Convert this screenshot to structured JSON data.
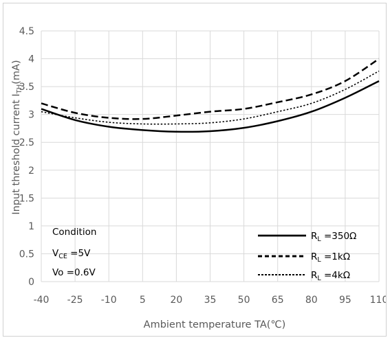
{
  "chart_data": {
    "type": "line",
    "xlabel": "Ambient temperature TA(℃)",
    "ylabel_parts": [
      "Input threshold current I",
      "TH",
      "(mA)"
    ],
    "x_ticks": [
      -40,
      -25,
      -10,
      5,
      20,
      35,
      50,
      65,
      80,
      95,
      110
    ],
    "y_ticks": [
      "0",
      "0.5",
      "1",
      "1.5",
      "2",
      "2.5",
      "3",
      "3.5",
      "4",
      "4.5"
    ],
    "xlim": [
      -40,
      110
    ],
    "ylim": [
      0,
      4.5
    ],
    "grid": true,
    "condition": {
      "title": "Condition",
      "vce_prefix": "V",
      "vce_sub": "CE",
      "vce_value": " =5V",
      "vo": "Vo =0.6V"
    },
    "series": [
      {
        "name": "Rₗ =350Ω",
        "label_main": "R",
        "label_sub": "L",
        "label_value": " =350Ω",
        "style": "solid",
        "x": [
          -40,
          -25,
          -10,
          5,
          20,
          35,
          50,
          65,
          80,
          95,
          110
        ],
        "y": [
          3.1,
          2.9,
          2.78,
          2.72,
          2.69,
          2.7,
          2.76,
          2.88,
          3.05,
          3.3,
          3.6
        ]
      },
      {
        "name": "Rₗ =1kΩ",
        "label_main": "R",
        "label_sub": "L",
        "label_value": " =1kΩ",
        "style": "dashed",
        "x": [
          -40,
          -25,
          -10,
          5,
          20,
          35,
          50,
          65,
          80,
          95,
          110
        ],
        "y": [
          3.2,
          3.03,
          2.94,
          2.92,
          2.98,
          3.05,
          3.1,
          3.22,
          3.36,
          3.6,
          4.0
        ]
      },
      {
        "name": "Rₗ =4kΩ",
        "label_main": "R",
        "label_sub": "L",
        "label_value": " =4kΩ",
        "style": "dotted",
        "x": [
          -40,
          -25,
          -10,
          5,
          20,
          35,
          50,
          65,
          80,
          95,
          110
        ],
        "y": [
          3.05,
          2.94,
          2.86,
          2.83,
          2.83,
          2.85,
          2.92,
          3.05,
          3.2,
          3.45,
          3.78
        ]
      }
    ],
    "line_color": "#000000",
    "grid_color": "#d9d9d9"
  }
}
